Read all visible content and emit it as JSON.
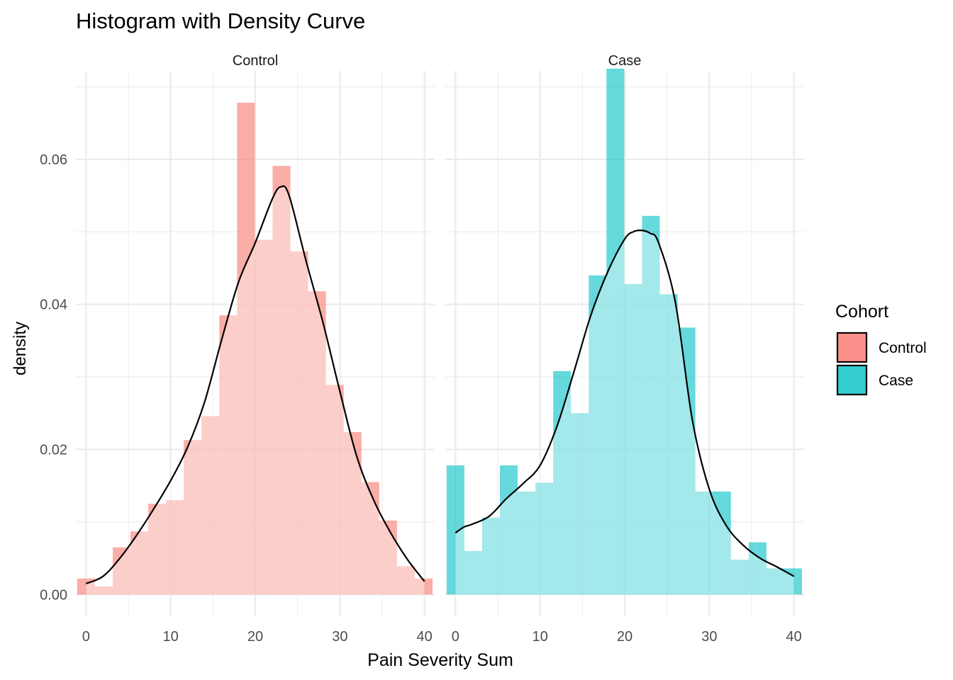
{
  "chart_data": {
    "type": "bar",
    "title": "Histogram with Density Curve",
    "xlabel": "Pain Severity Sum",
    "ylabel": "density",
    "xlim": [
      -1.2,
      41.2
    ],
    "ylim": [
      -0.003,
      0.0722
    ],
    "x_ticks": [
      0,
      10,
      20,
      30,
      40
    ],
    "x_minor_ticks": [
      5,
      15,
      25,
      35
    ],
    "y_ticks": [
      0.0,
      0.02,
      0.04,
      0.06
    ],
    "y_tick_labels": [
      "0.00",
      "0.02",
      "0.04",
      "0.06"
    ],
    "y_minor_ticks": [
      0.01,
      0.03,
      0.05,
      0.07
    ],
    "grid": true,
    "legend": {
      "title": "Cohort",
      "position": "right",
      "entries": [
        {
          "label": "Control",
          "color": "#F8766D"
        },
        {
          "label": "Case",
          "color": "#00BFC4"
        }
      ]
    },
    "bin_width": 2.1,
    "bin_starts": [
      -1.05,
      1.05,
      3.15,
      5.25,
      7.35,
      9.45,
      11.55,
      13.65,
      15.75,
      17.85,
      19.95,
      22.05,
      24.15,
      26.25,
      28.35,
      30.45,
      32.55,
      34.65,
      36.75,
      38.85
    ],
    "series": [
      {
        "name": "Control",
        "color": "#F8766D",
        "histogram": [
          0.0022,
          0.0011,
          0.0065,
          0.0087,
          0.0125,
          0.013,
          0.0213,
          0.0246,
          0.0385,
          0.0678,
          0.0489,
          0.0591,
          0.0473,
          0.0418,
          0.0289,
          0.0224,
          0.0155,
          0.0102,
          0.0039,
          0.0022
        ],
        "density_x": [
          0,
          2,
          4,
          6,
          8,
          10,
          12,
          14,
          16,
          18,
          20,
          22,
          23,
          24,
          26,
          28,
          30,
          32,
          34,
          36,
          38,
          40
        ],
        "density_y": [
          0.0015,
          0.0025,
          0.005,
          0.0082,
          0.0118,
          0.0157,
          0.0203,
          0.0265,
          0.035,
          0.043,
          0.0485,
          0.0545,
          0.0562,
          0.055,
          0.046,
          0.0375,
          0.028,
          0.019,
          0.013,
          0.0085,
          0.0048,
          0.0018
        ]
      },
      {
        "name": "Case",
        "color": "#00BFC4",
        "histogram": [
          0.0178,
          0.006,
          0.0106,
          0.0178,
          0.0142,
          0.0154,
          0.0308,
          0.025,
          0.044,
          0.0725,
          0.0428,
          0.0522,
          0.0414,
          0.0368,
          0.0142,
          0.0142,
          0.0048,
          0.0072,
          0.0036,
          0.0036
        ],
        "density_x": [
          0,
          1,
          2,
          4,
          6,
          8,
          10,
          12,
          14,
          16,
          18,
          20,
          21,
          22,
          23,
          24,
          26,
          28,
          30,
          32,
          34,
          36,
          38,
          40
        ],
        "density_y": [
          0.0085,
          0.0093,
          0.0097,
          0.0108,
          0.0132,
          0.0153,
          0.0178,
          0.0232,
          0.0307,
          0.0385,
          0.0445,
          0.049,
          0.05,
          0.0502,
          0.0498,
          0.0485,
          0.0402,
          0.024,
          0.0145,
          0.0095,
          0.0068,
          0.005,
          0.0038,
          0.0025
        ]
      }
    ]
  }
}
